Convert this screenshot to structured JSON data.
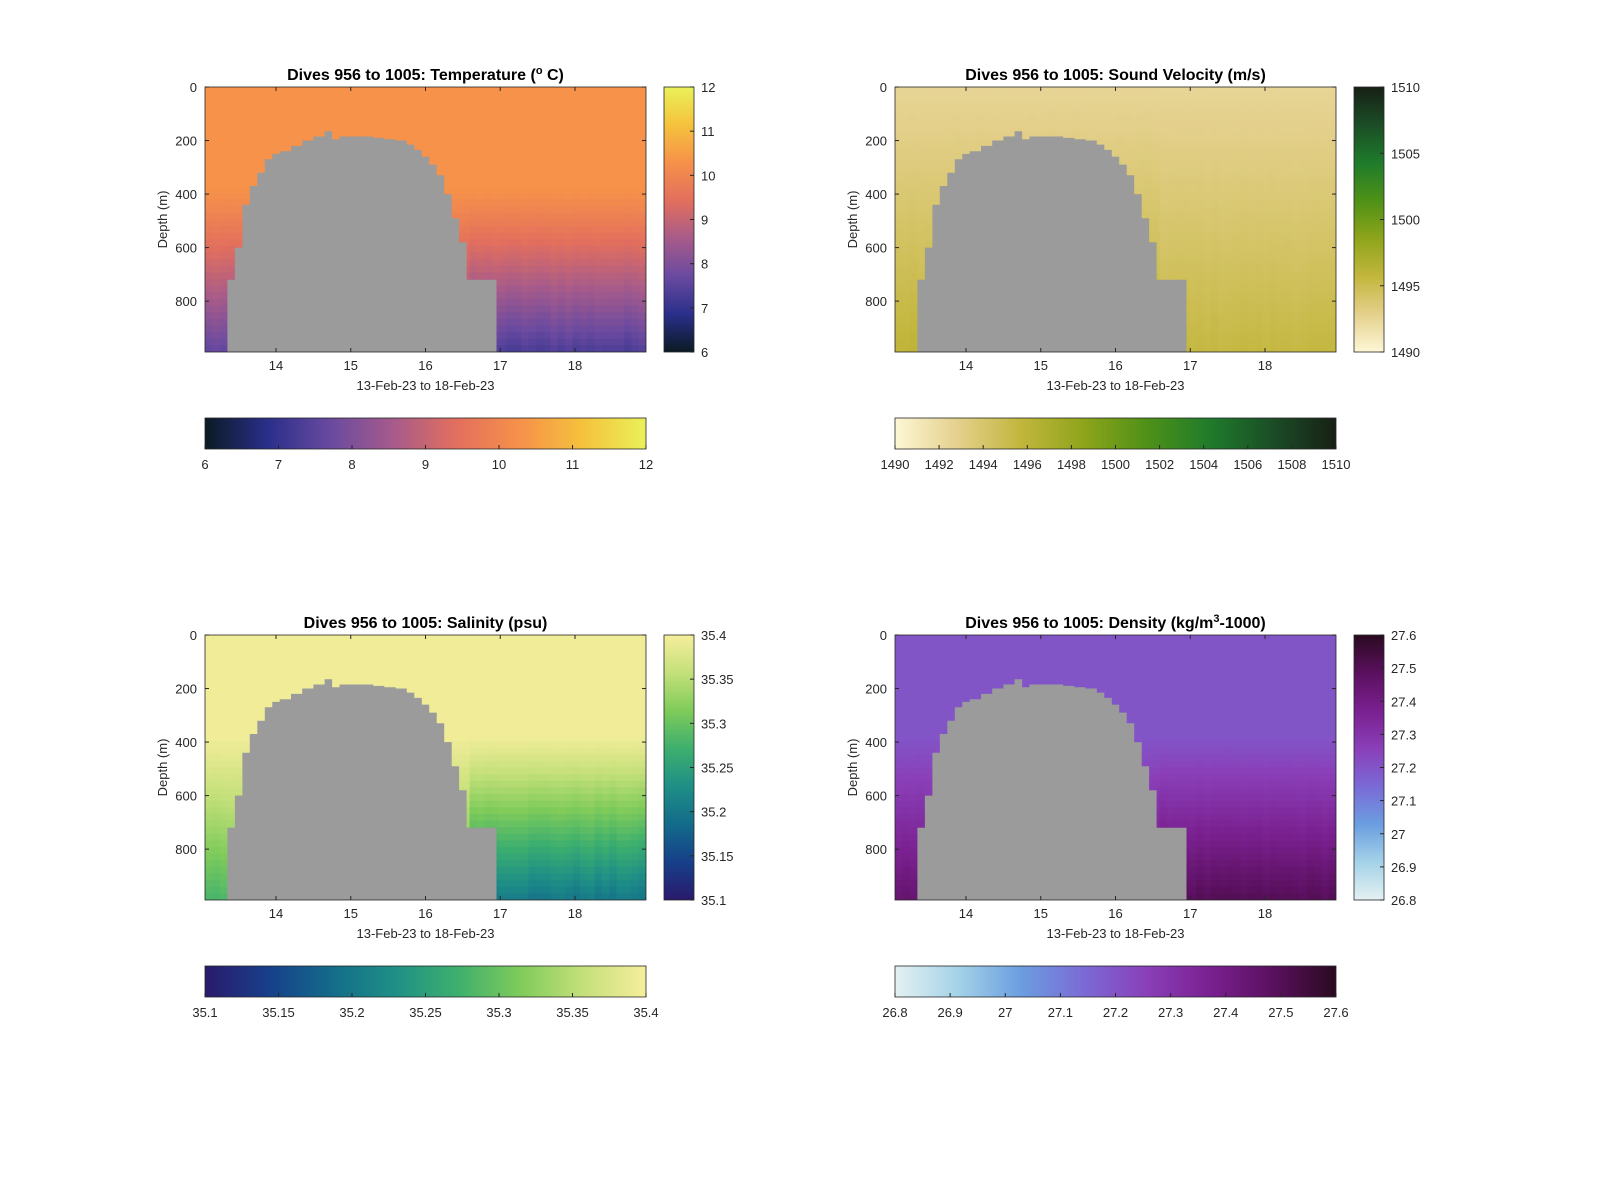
{
  "figure": {
    "depth_range_m": [
      0,
      990
    ],
    "time_range_day": [
      13.05,
      18.95
    ],
    "land_color": "#9b9b9b",
    "axis_color": "#262626"
  },
  "chart_data": [
    {
      "type": "heatmap",
      "title_parts": {
        "pre": "Dives 956 to 1005: Temperature (",
        "sup": "o",
        "post": " C)"
      },
      "xlabel": "13-Feb-23 to 18-Feb-23",
      "ylabel": "Depth (m)",
      "xticks": [
        "14",
        "15",
        "16",
        "17",
        "18"
      ],
      "xtick_values": [
        14,
        15,
        16,
        17,
        18
      ],
      "yticks": [
        "0",
        "200",
        "400",
        "600",
        "800"
      ],
      "ytick_values": [
        0,
        200,
        400,
        600,
        800
      ],
      "ylim": [
        990,
        0
      ],
      "xlim": [
        13.05,
        18.95
      ],
      "clim": [
        6,
        12
      ],
      "colormap": [
        "#0b1a24",
        "#2a2f8a",
        "#6a4aa0",
        "#a75b8a",
        "#e36f5d",
        "#f6914a",
        "#f5c23c",
        "#eaf15a"
      ],
      "vertical_colorbar_ticks": [
        "6",
        "7",
        "8",
        "9",
        "10",
        "11",
        "12"
      ],
      "horizontal_colorbar_ticks": [
        "6",
        "7",
        "8",
        "9",
        "10",
        "11",
        "12"
      ],
      "surface_value": 10.3,
      "deep_values_left": 7.6,
      "deep_values_right": 7.3,
      "gradient_start_depth_m": 380
    },
    {
      "type": "heatmap",
      "title_parts": {
        "pre": "Dives 956 to 1005: Sound Velocity (m/s)",
        "sup": "",
        "post": ""
      },
      "xlabel": "13-Feb-23 to 18-Feb-23",
      "ylabel": "Depth (m)",
      "xticks": [
        "14",
        "15",
        "16",
        "17",
        "18"
      ],
      "xtick_values": [
        14,
        15,
        16,
        17,
        18
      ],
      "yticks": [
        "0",
        "200",
        "400",
        "600",
        "800"
      ],
      "ytick_values": [
        0,
        200,
        400,
        600,
        800
      ],
      "ylim": [
        990,
        0
      ],
      "xlim": [
        13.05,
        18.95
      ],
      "clim": [
        1490,
        1510
      ],
      "colormap": [
        "#fdf7d6",
        "#e4d08c",
        "#c2b63c",
        "#8ea41b",
        "#4e9117",
        "#1f7b2b",
        "#1b4d26",
        "#172015"
      ],
      "vertical_colorbar_ticks": [
        "1490",
        "1495",
        "1500",
        "1505",
        "1510"
      ],
      "horizontal_colorbar_ticks": [
        "1490",
        "1492",
        "1494",
        "1496",
        "1498",
        "1500",
        "1502",
        "1504",
        "1506",
        "1508",
        "1510"
      ],
      "surface_value": 1492.5,
      "deep_values_left": 1496,
      "deep_values_right": 1495.5,
      "gradient_start_depth_m": 0
    },
    {
      "type": "heatmap",
      "title_parts": {
        "pre": "Dives 956 to 1005: Salinity (psu)",
        "sup": "",
        "post": ""
      },
      "xlabel": "13-Feb-23 to 18-Feb-23",
      "ylabel": "Depth (m)",
      "xticks": [
        "14",
        "15",
        "16",
        "17",
        "18"
      ],
      "xtick_values": [
        14,
        15,
        16,
        17,
        18
      ],
      "yticks": [
        "0",
        "200",
        "400",
        "600",
        "800"
      ],
      "ytick_values": [
        0,
        200,
        400,
        600,
        800
      ],
      "ylim": [
        990,
        0
      ],
      "xlim": [
        13.05,
        18.95
      ],
      "clim": [
        35.1,
        35.4
      ],
      "colormap": [
        "#2a1a6b",
        "#173f8a",
        "#136b8a",
        "#1e8f86",
        "#3daf6e",
        "#7fcb5a",
        "#c4e07a",
        "#f6ee9c"
      ],
      "vertical_colorbar_ticks": [
        "35.1",
        "35.15",
        "35.2",
        "35.25",
        "35.3",
        "35.35",
        "35.4"
      ],
      "horizontal_colorbar_ticks": [
        "35.1",
        "35.15",
        "35.2",
        "35.25",
        "35.3",
        "35.35",
        "35.4"
      ],
      "surface_value": 35.395,
      "deep_values_left": 35.28,
      "deep_values_right": 35.2,
      "gradient_start_depth_m": 380
    },
    {
      "type": "heatmap",
      "title_parts": {
        "pre": "Dives 956 to 1005: Density (kg/m",
        "sup": "3",
        "post": "-1000)"
      },
      "xlabel": "13-Feb-23 to 18-Feb-23",
      "ylabel": "Depth (m)",
      "xticks": [
        "14",
        "15",
        "16",
        "17",
        "18"
      ],
      "xtick_values": [
        14,
        15,
        16,
        17,
        18
      ],
      "yticks": [
        "0",
        "200",
        "400",
        "600",
        "800"
      ],
      "ytick_values": [
        0,
        200,
        400,
        600,
        800
      ],
      "ylim": [
        990,
        0
      ],
      "xlim": [
        13.05,
        18.95
      ],
      "clim": [
        26.8,
        27.6
      ],
      "colormap": [
        "#e4f1f2",
        "#a4d2e8",
        "#6b9ee0",
        "#7b6ad6",
        "#8a3fb8",
        "#7a2090",
        "#5a105e",
        "#2a0a20"
      ],
      "vertical_colorbar_ticks": [
        "26.8",
        "26.9",
        "27",
        "27.1",
        "27.2",
        "27.3",
        "27.4",
        "27.5",
        "27.6"
      ],
      "horizontal_colorbar_ticks": [
        "26.8",
        "26.9",
        "27",
        "27.1",
        "27.2",
        "27.3",
        "27.4",
        "27.5",
        "27.6"
      ],
      "surface_value": 27.2,
      "deep_values_left": 27.45,
      "deep_values_right": 27.5,
      "gradient_start_depth_m": 380
    }
  ],
  "seafloor_profile": {
    "days": [
      13.05,
      13.35,
      13.45,
      13.55,
      13.65,
      13.75,
      13.85,
      13.95,
      14.05,
      14.2,
      14.35,
      14.5,
      14.65,
      14.75,
      14.85,
      15.0,
      15.15,
      15.3,
      15.45,
      15.6,
      15.75,
      15.85,
      15.95,
      16.05,
      16.15,
      16.25,
      16.35,
      16.45,
      16.55,
      16.95
    ],
    "depth_m": [
      990,
      720,
      600,
      440,
      370,
      320,
      270,
      250,
      240,
      220,
      200,
      185,
      165,
      195,
      185,
      185,
      185,
      190,
      195,
      200,
      215,
      235,
      260,
      290,
      330,
      400,
      490,
      580,
      720,
      990
    ]
  }
}
